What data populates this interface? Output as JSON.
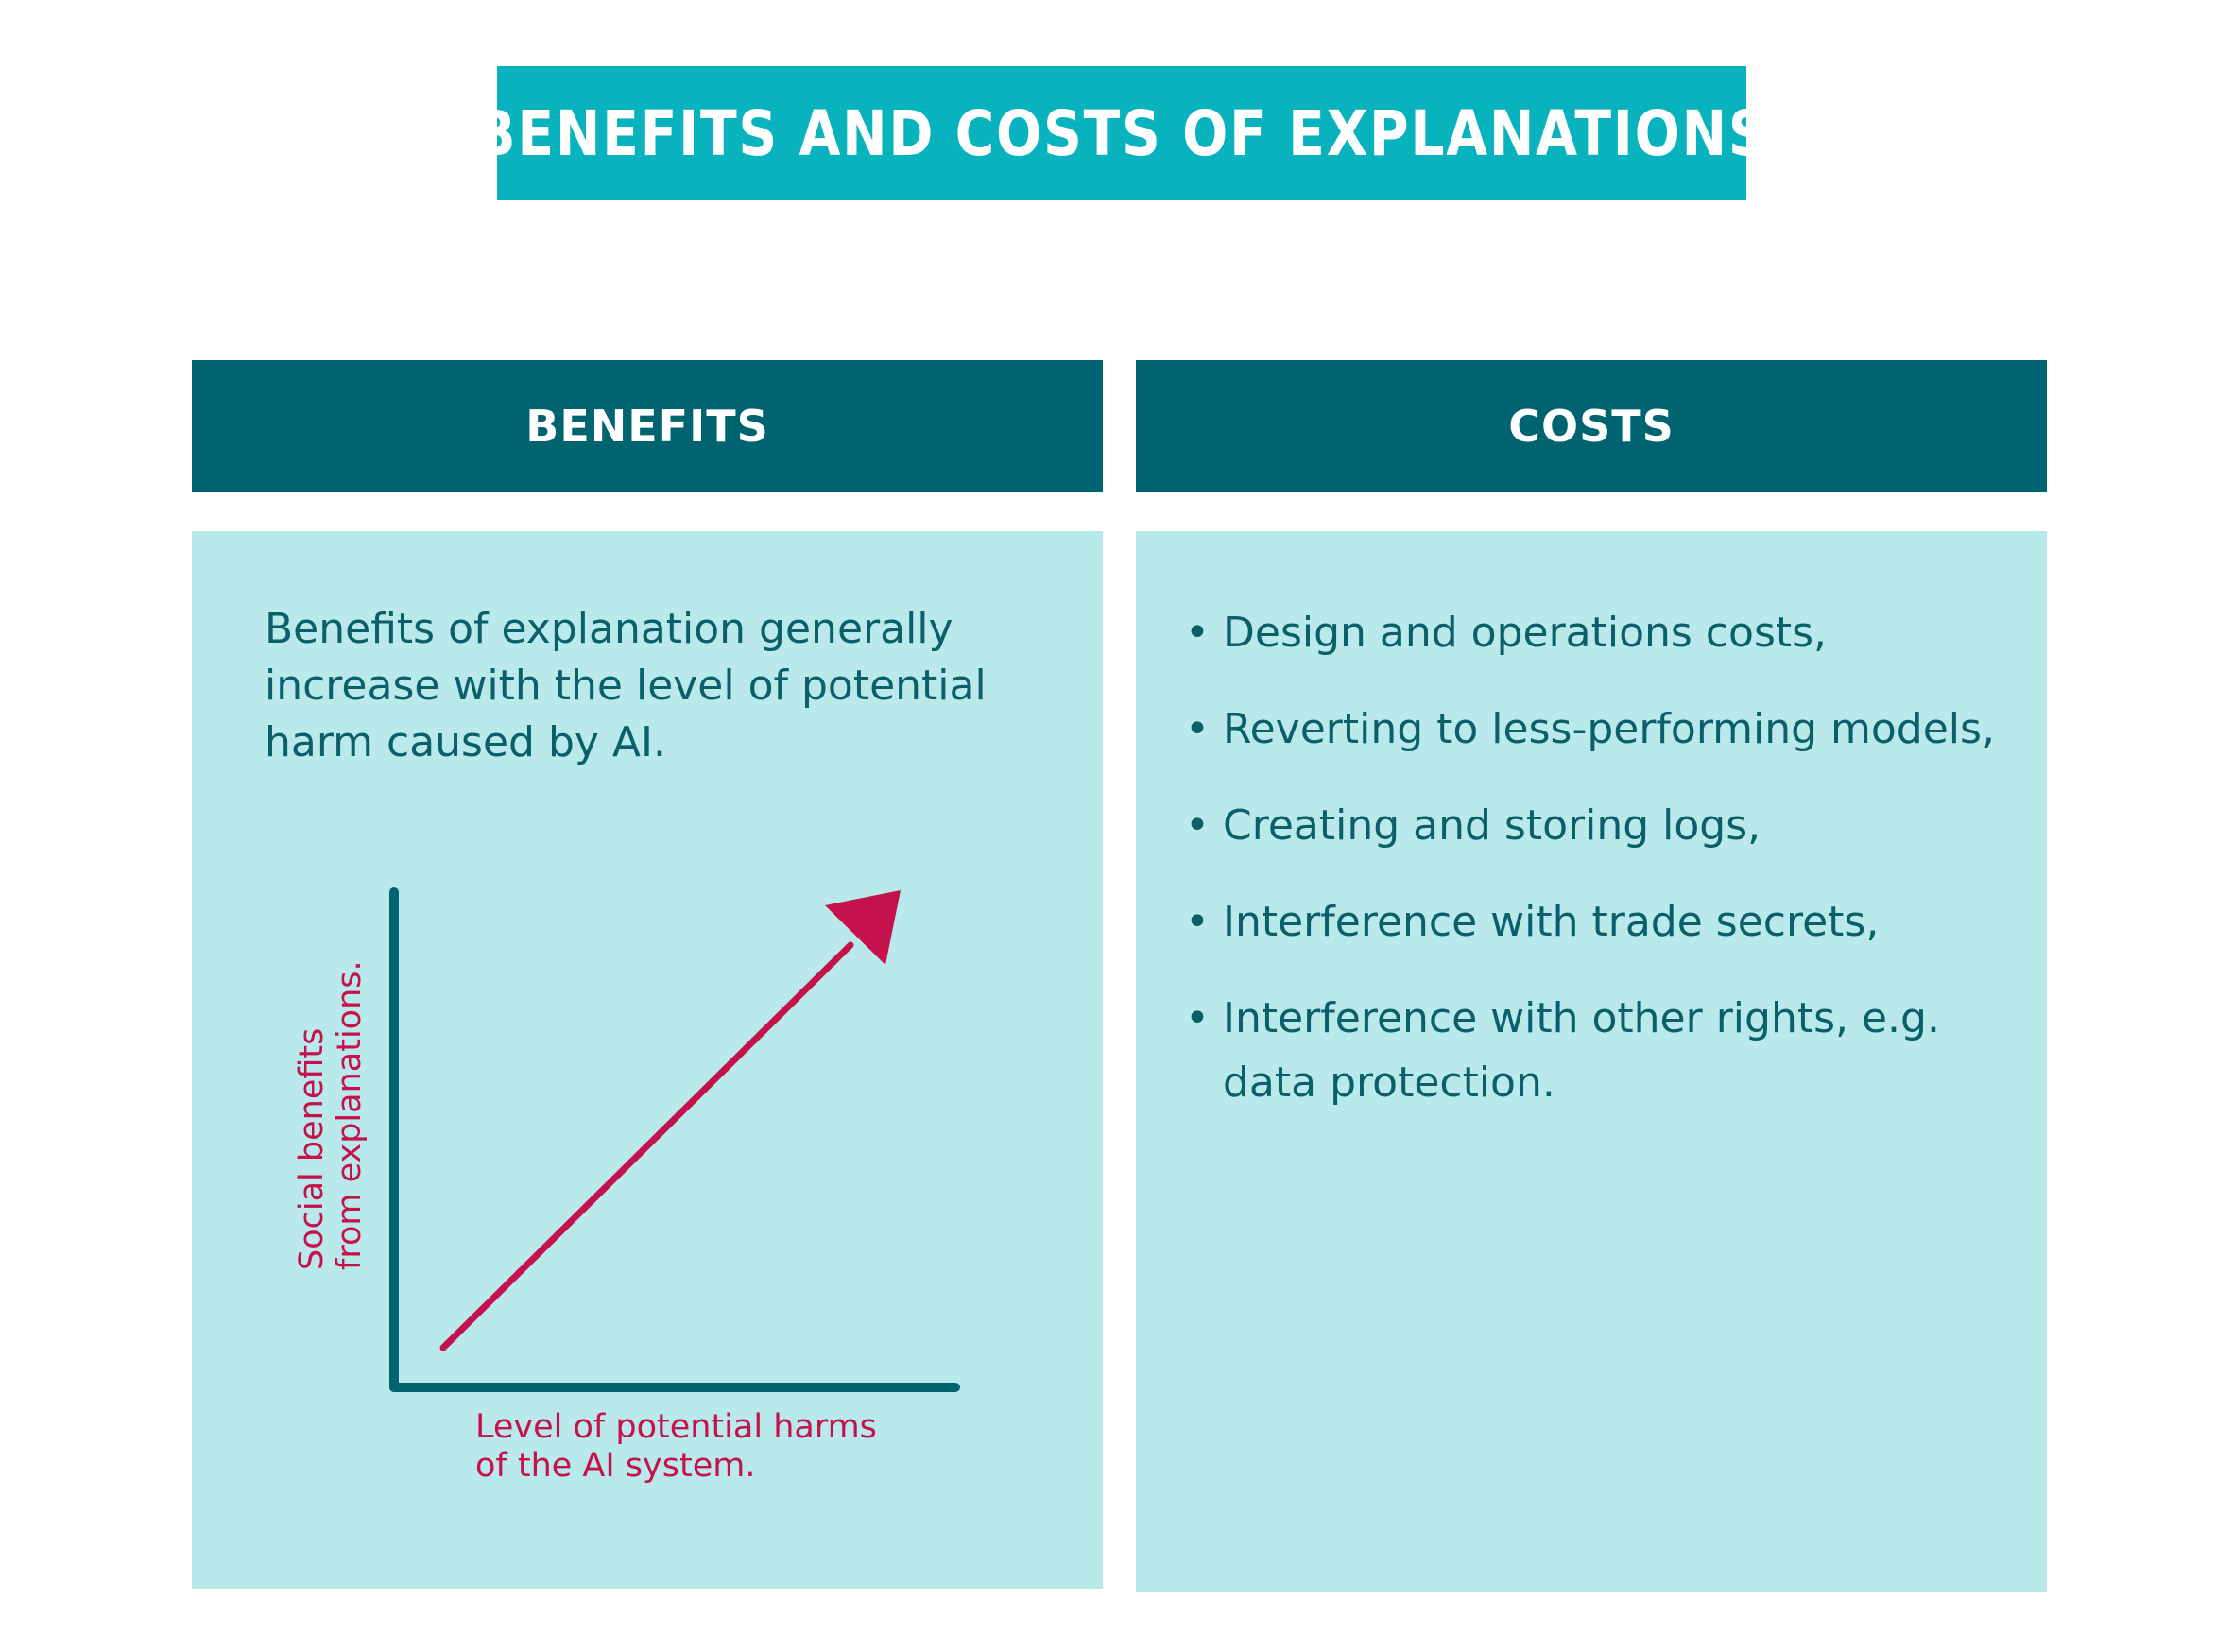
{
  "title": "BENEFITS AND COSTS OF EXPLANATIONS",
  "benefits": {
    "header": "BENEFITS",
    "text": "Benefits of explanation generally increase with the level of potential harm caused by AI.",
    "y_axis_label_line1": "Social benefits",
    "y_axis_label_line2": "from explanations.",
    "x_axis_label_line1": "Level of potential harms",
    "x_axis_label_line2": "of the AI system."
  },
  "costs": {
    "header": "COSTS",
    "items": [
      "Design and operations costs,",
      "Reverting to less-performing models,",
      "Creating and storing logs,",
      "Interference with trade secrets,",
      "Interference with other rights, e.g. data protection."
    ]
  },
  "colors": {
    "title_bg": "#08b3bd",
    "header_bg": "#006370",
    "panel_bg": "#bae9ec",
    "text": "#0a5f69",
    "accent": "#c4134c"
  }
}
